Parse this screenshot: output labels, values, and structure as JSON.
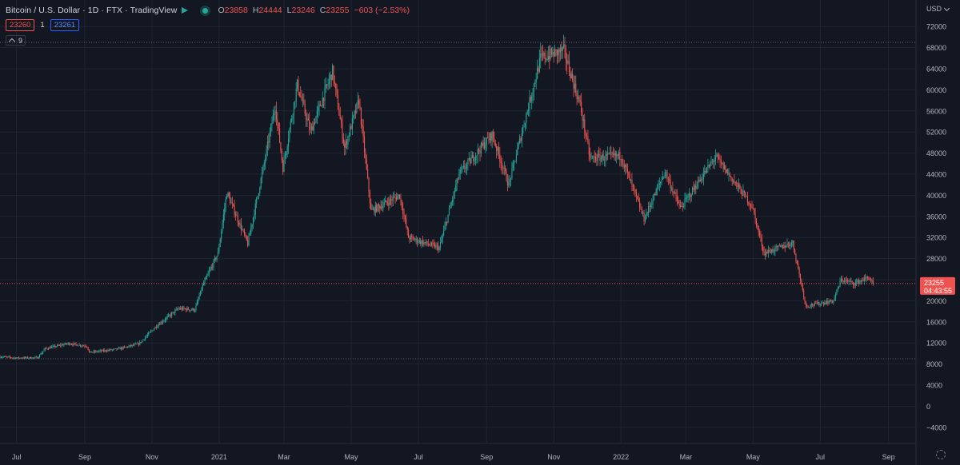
{
  "header": {
    "title": "Bitcoin / U.S. Dollar · 1D · FTX · TradingView",
    "open_label": "O",
    "open": "23858",
    "high_label": "H",
    "high": "24444",
    "low_label": "L",
    "low": "23246",
    "close_label": "C",
    "close": "23255",
    "change": "−603 (−2.53%)"
  },
  "trade": {
    "sell_price": "23260",
    "quantity": "1",
    "buy_price": "23261"
  },
  "indicator": {
    "label": "9"
  },
  "currency": "USD",
  "colors": {
    "background": "#131722",
    "up": "#26a69a",
    "down": "#ef5350",
    "grid": "#1f2430",
    "text": "#b2b5be"
  },
  "chart_data": {
    "type": "candlestick",
    "symbol": "Bitcoin / U.S. Dollar",
    "interval": "1D",
    "exchange": "FTX",
    "y_axis": {
      "ticks": [
        -4000,
        0,
        4000,
        8000,
        12000,
        16000,
        20000,
        24000,
        28000,
        32000,
        36000,
        40000,
        44000,
        48000,
        52000,
        56000,
        60000,
        64000,
        68000,
        72000
      ],
      "range": [
        -6000,
        74000
      ],
      "unit": "USD"
    },
    "x_axis": {
      "labels": [
        "Jul",
        "Sep",
        "Nov",
        "2021",
        "Mar",
        "May",
        "Jul",
        "Sep",
        "Nov",
        "2022",
        "Mar",
        "May",
        "Jul",
        "Sep"
      ],
      "label_dates": [
        "2020-07-01",
        "2020-09-01",
        "2020-11-01",
        "2021-01-01",
        "2021-03-01",
        "2021-05-01",
        "2021-07-01",
        "2021-09-01",
        "2021-11-01",
        "2022-01-01",
        "2022-03-01",
        "2022-05-01",
        "2022-07-01",
        "2022-09-01"
      ],
      "range": [
        "2020-06-16",
        "2022-09-26"
      ]
    },
    "grid": true,
    "last_price": {
      "value": 23255,
      "label": "23255",
      "countdown": "04:43:55"
    },
    "reference_lines": [
      {
        "value": 69000
      },
      {
        "value": 9000
      }
    ],
    "price_path": [
      [
        "2020-06-16",
        9400
      ],
      [
        "2020-07-01",
        9150
      ],
      [
        "2020-07-20",
        9200
      ],
      [
        "2020-07-27",
        10900
      ],
      [
        "2020-08-17",
        11900
      ],
      [
        "2020-09-03",
        11400
      ],
      [
        "2020-09-05",
        10200
      ],
      [
        "2020-09-30",
        10800
      ],
      [
        "2020-10-20",
        11800
      ],
      [
        "2020-11-05",
        15200
      ],
      [
        "2020-11-25",
        18500
      ],
      [
        "2020-12-10",
        18300
      ],
      [
        "2020-12-17",
        22800
      ],
      [
        "2020-12-31",
        29000
      ],
      [
        "2021-01-08",
        40500
      ],
      [
        "2021-01-27",
        30800
      ],
      [
        "2021-02-10",
        45000
      ],
      [
        "2021-02-21",
        57000
      ],
      [
        "2021-02-28",
        45200
      ],
      [
        "2021-03-13",
        61000
      ],
      [
        "2021-03-25",
        52000
      ],
      [
        "2021-04-14",
        63500
      ],
      [
        "2021-04-25",
        49000
      ],
      [
        "2021-05-08",
        58000
      ],
      [
        "2021-05-19",
        37000
      ],
      [
        "2021-06-14",
        40000
      ],
      [
        "2021-06-22",
        32000
      ],
      [
        "2021-07-20",
        30000
      ],
      [
        "2021-08-07",
        44000
      ],
      [
        "2021-09-06",
        51500
      ],
      [
        "2021-09-21",
        42000
      ],
      [
        "2021-10-20",
        66000
      ],
      [
        "2021-11-10",
        67500
      ],
      [
        "2021-11-25",
        57000
      ],
      [
        "2021-12-04",
        47000
      ],
      [
        "2022-01-01",
        47500
      ],
      [
        "2022-01-22",
        35500
      ],
      [
        "2022-02-10",
        44500
      ],
      [
        "2022-02-24",
        37500
      ],
      [
        "2022-03-28",
        47300
      ],
      [
        "2022-04-30",
        38000
      ],
      [
        "2022-05-11",
        29000
      ],
      [
        "2022-06-06",
        31000
      ],
      [
        "2022-06-18",
        19000
      ],
      [
        "2022-07-13",
        20000
      ],
      [
        "2022-07-20",
        24000
      ],
      [
        "2022-08-01",
        23300
      ],
      [
        "2022-08-14",
        24400
      ],
      [
        "2022-08-18",
        23255
      ]
    ]
  }
}
